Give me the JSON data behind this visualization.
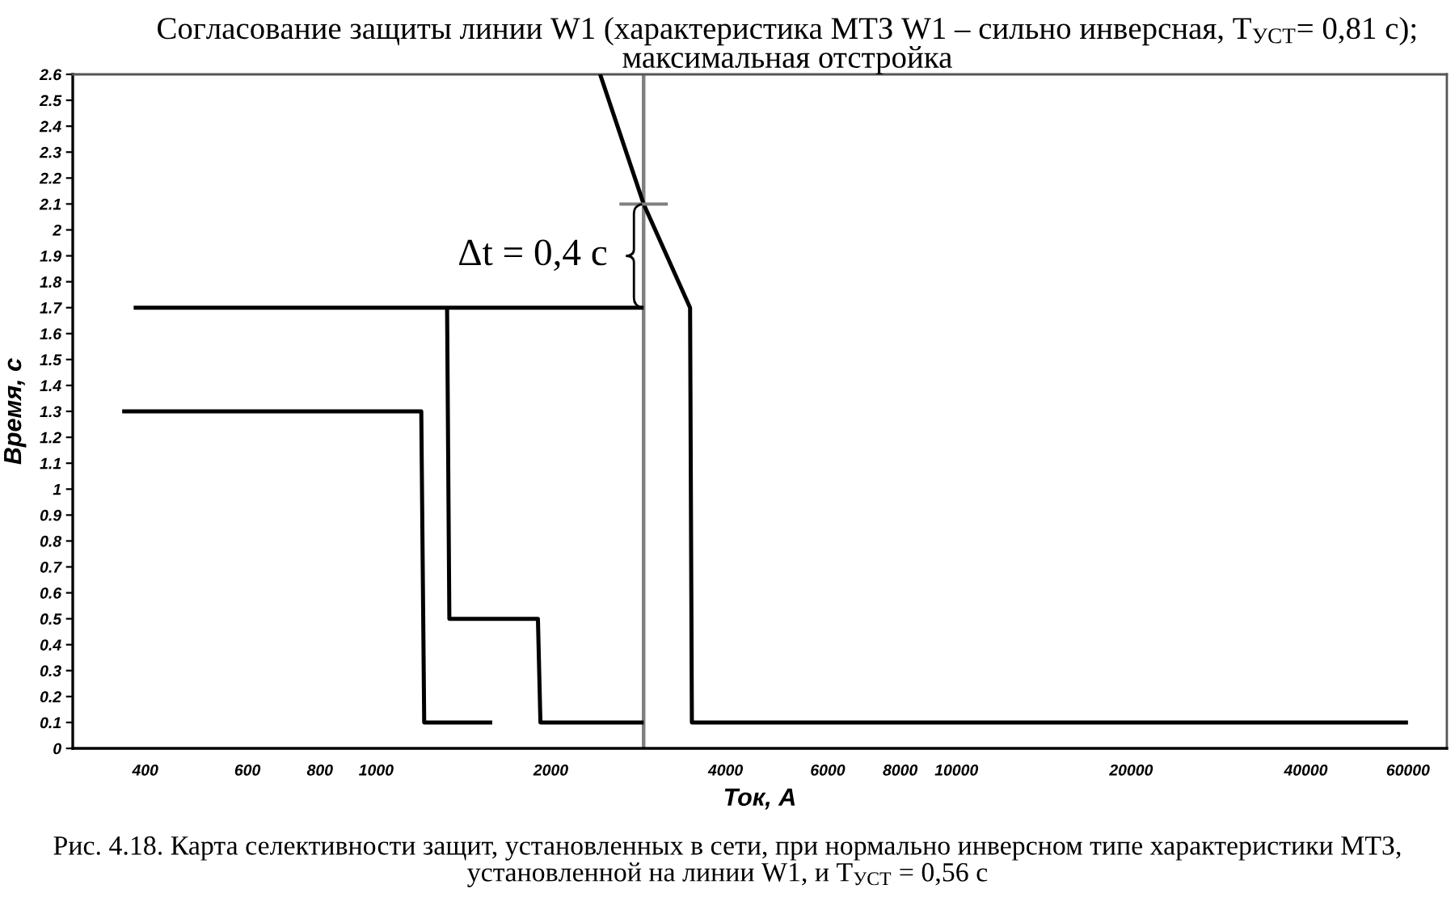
{
  "chart_data": {
    "type": "line",
    "title": "Согласование защиты линии W1 (характеристика МТЗ W1 – сильно инверсная, T$_{УСТ}$= 0,81 с);\nмаксимальная отстройка",
    "xlabel": "Ток, А",
    "ylabel": "Время, с",
    "log": "x",
    "grid": false,
    "xlim": [
      300,
      70000
    ],
    "xticks": [
      400,
      600,
      800,
      1000,
      2000,
      4000,
      6000,
      8000,
      10000,
      20000,
      40000,
      60000
    ],
    "ylim": [
      0,
      2.6
    ],
    "yticks": [
      0,
      0.1,
      0.2,
      0.3,
      0.4,
      0.5,
      0.6,
      0.7,
      0.8,
      0.9,
      1,
      1.1,
      1.2,
      1.3,
      1.4,
      1.5,
      1.6,
      1.7,
      1.8,
      1.9,
      2,
      2.1,
      2.2,
      2.3,
      2.4,
      2.5,
      2.6
    ],
    "series": [
      {
        "color": "#000000",
        "x": [
          365,
          1196,
          1210,
          1585
        ],
        "values": [
          1.3,
          1.3,
          0.1,
          0.1
        ]
      },
      {
        "color": "#000000",
        "x": [
          382,
          2890
        ],
        "values": [
          1.7,
          1.7
        ]
      },
      {
        "color": "#000000",
        "x": [
          1325,
          1337,
          1900,
          1919,
          2890
        ],
        "values": [
          1.7,
          0.5,
          0.5,
          0.1,
          0.1
        ]
      },
      {
        "color": "#000000",
        "x": [
          2432,
          2890,
          3475,
          3500,
          60000
        ],
        "values": [
          2.6,
          2.1,
          1.7,
          0.1,
          0.1
        ]
      }
    ],
    "ref_lines": [
      {
        "axis": "x",
        "value": 2890,
        "color": "#808080"
      }
    ],
    "annotations": [
      {
        "text": "Δt = 0,4 с",
        "x": 2890,
        "y": 1.9
      },
      "Рис. 4.18. Карта селективности защит, установленных в сети, при нормально инверсном типе характеристики МТЗ, установленной на линии W1, и T$_{УСТ}$ = 0,56 с"
    ]
  }
}
